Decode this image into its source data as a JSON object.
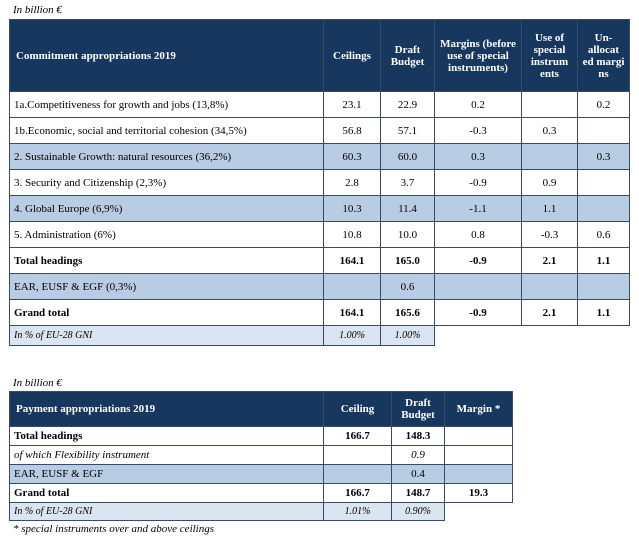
{
  "commitment": {
    "unit": "In billion €",
    "headers": {
      "title": "Commitment appropriations 2019",
      "ceilings": "Ceilings",
      "draft": "Draft Budget",
      "margins": "Margins (before use of special instruments)",
      "special": "Use of special instrum ents",
      "unallocated": "Un-allocat ed margi ns"
    },
    "rows": [
      {
        "label": "1a.Competitiveness for growth and jobs (13,8%)",
        "ceilings": "23.1",
        "draft": "22.9",
        "margins": "0.2",
        "special": "",
        "unallocated": "0.2"
      },
      {
        "label": "1b.Economic, social and territorial cohesion (34,5%)",
        "ceilings": "56.8",
        "draft": "57.1",
        "margins": "-0.3",
        "special": "0.3",
        "unallocated": ""
      },
      {
        "label": "2. Sustainable Growth: natural resources (36,2%)",
        "ceilings": "60.3",
        "draft": "60.0",
        "margins": "0.3",
        "special": "",
        "unallocated": "0.3"
      },
      {
        "label": "3. Security and Citizenship (2,3%)",
        "ceilings": "2.8",
        "draft": "3.7",
        "margins": "-0.9",
        "special": "0.9",
        "unallocated": ""
      },
      {
        "label": "4. Global Europe (6,9%)",
        "ceilings": "10.3",
        "draft": "11.4",
        "margins": "-1.1",
        "special": "1.1",
        "unallocated": ""
      },
      {
        "label": "5. Administration (6%)",
        "ceilings": "10.8",
        "draft": "10.0",
        "margins": "0.8",
        "special": "-0.3",
        "unallocated": "0.6"
      },
      {
        "label": "Total headings",
        "ceilings": "164.1",
        "draft": "165.0",
        "margins": "-0.9",
        "special": "2.1",
        "unallocated": "1.1"
      },
      {
        "label": "EAR, EUSF & EGF (0,3%)",
        "ceilings": "",
        "draft": "0.6",
        "margins": "",
        "special": "",
        "unallocated": ""
      },
      {
        "label": "Grand total",
        "ceilings": "164.1",
        "draft": "165.6",
        "margins": "-0.9",
        "special": "2.1",
        "unallocated": "1.1"
      }
    ],
    "pct_row": {
      "label": "In % of EU-28 GNI",
      "ceilings": "1.00%",
      "draft": "1.00%"
    }
  },
  "payment": {
    "unit": "In billion €",
    "headers": {
      "title": "Payment appropriations 2019",
      "ceiling": "Ceiling",
      "draft": "Draft Budget",
      "margin": "Margin *"
    },
    "rows": [
      {
        "label": "Total headings",
        "ceiling": "166.7",
        "draft": "148.3",
        "margin": ""
      },
      {
        "label": "of which Flexibility instrument",
        "ceiling": "",
        "draft": "0.9",
        "margin": ""
      },
      {
        "label": "EAR, EUSF & EGF",
        "ceiling": "",
        "draft": "0.4",
        "margin": ""
      },
      {
        "label": "Grand total",
        "ceiling": "166.7",
        "draft": "148.7",
        "margin": "19.3"
      }
    ],
    "pct_row": {
      "label": "In % of EU-28 GNI",
      "ceiling": "1.01%",
      "draft": "0.90%"
    },
    "footnote": "* special instruments over and above ceilings"
  }
}
